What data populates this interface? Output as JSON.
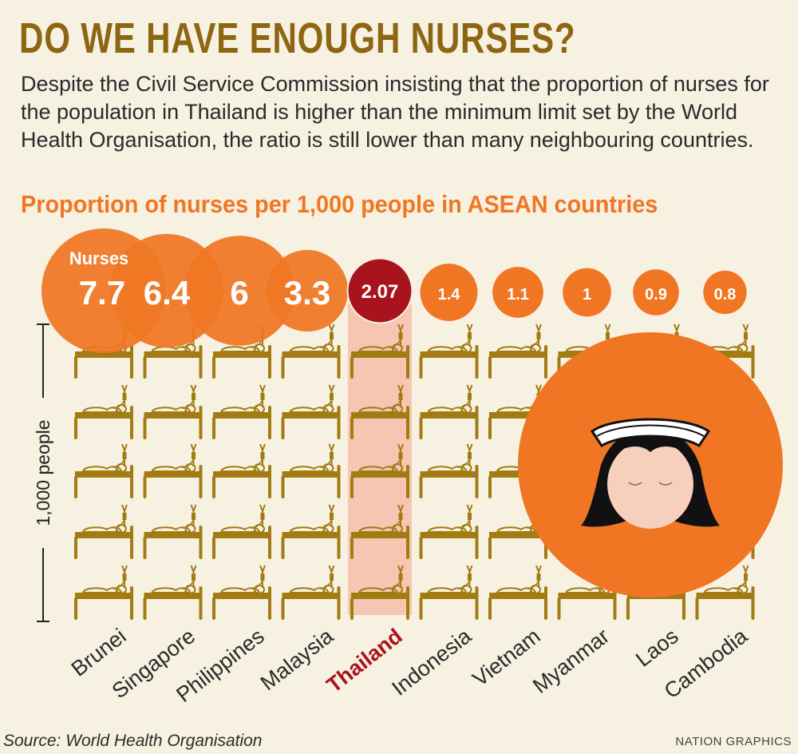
{
  "headline": "DO WE HAVE ENOUGH NURSES?",
  "intro": "Despite the Civil Service Commission insisting that the proportion of nurses for the population in Thailand is higher than the minimum limit set by the World Health Organisation, the ratio is still lower than many neighbouring countries.",
  "chart_data": {
    "type": "bubble",
    "title": "Proportion of nurses per 1,000 people in ASEAN countries",
    "series_label": "Nurses",
    "ylabel": "1,000 people",
    "categories": [
      "Brunei",
      "Singapore",
      "Philippines",
      "Malaysia",
      "Thailand",
      "Indonesia",
      "Vietnam",
      "Myanmar",
      "Laos",
      "Cambodia"
    ],
    "values": [
      7.7,
      6.4,
      6,
      3.3,
      2.07,
      1.4,
      1.1,
      1,
      0.9,
      0.8
    ],
    "value_labels": [
      "7.7",
      "6.4",
      "6",
      "3.3",
      "2.07",
      "1.4",
      "1.1",
      "1",
      "0.9",
      "0.8"
    ],
    "highlight": "Thailand",
    "bed_rows": 5
  },
  "colors": {
    "bubble": "#f07623",
    "highlight": "#a8141d",
    "highlight_band": "#f6c6b3",
    "bed": "#a27c12",
    "title": "#8d6612",
    "text": "#2a2a2a"
  },
  "source": "Source: World Health Organisation",
  "credit": "NATION GRAPHICS"
}
